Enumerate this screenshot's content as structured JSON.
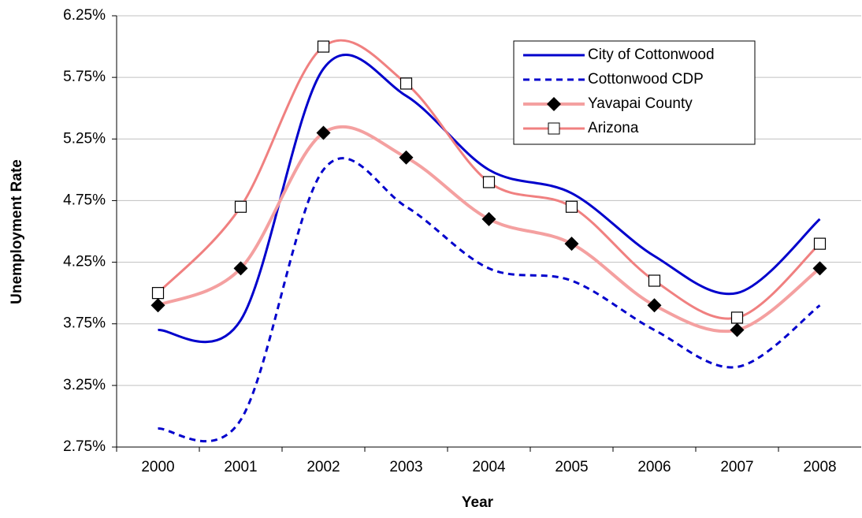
{
  "chart_data": {
    "type": "line",
    "xlabel": "Year",
    "ylabel": "Unemployment Rate",
    "categories": [
      "2000",
      "2001",
      "2002",
      "2003",
      "2004",
      "2005",
      "2006",
      "2007",
      "2008"
    ],
    "series": [
      {
        "name": "City of Cottonwood",
        "color": "#0000cc",
        "dash": "solid",
        "marker": "none",
        "values": [
          3.7,
          3.78,
          5.82,
          5.6,
          5.0,
          4.81,
          4.3,
          4.0,
          4.6
        ]
      },
      {
        "name": "Cottonwood CDP",
        "color": "#0000cc",
        "dash": "dashed",
        "marker": "none",
        "values": [
          2.9,
          2.97,
          5.0,
          4.7,
          4.2,
          4.1,
          3.7,
          3.4,
          3.9
        ]
      },
      {
        "name": "Yavapai County",
        "color": "#f4a0a0",
        "dash": "solid",
        "marker": "diamond",
        "values": [
          3.9,
          4.2,
          5.3,
          5.1,
          4.6,
          4.4,
          3.9,
          3.7,
          4.2
        ]
      },
      {
        "name": "Arizona",
        "color": "#f08080",
        "dash": "solid",
        "marker": "square",
        "values": [
          4.0,
          4.7,
          6.0,
          5.7,
          4.9,
          4.7,
          4.1,
          3.8,
          4.4
        ]
      }
    ],
    "ylim": [
      2.75,
      6.25
    ],
    "yticks": [
      {
        "value": 2.75,
        "label": "2.75%"
      },
      {
        "value": 3.25,
        "label": "3.25%"
      },
      {
        "value": 3.75,
        "label": "3.75%"
      },
      {
        "value": 4.25,
        "label": "4.25%"
      },
      {
        "value": 4.75,
        "label": "4.75%"
      },
      {
        "value": 5.25,
        "label": "5.25%"
      },
      {
        "value": 5.75,
        "label": "5.75%"
      },
      {
        "value": 6.25,
        "label": "6.25%"
      }
    ],
    "grid": true,
    "legend": "top-right"
  }
}
